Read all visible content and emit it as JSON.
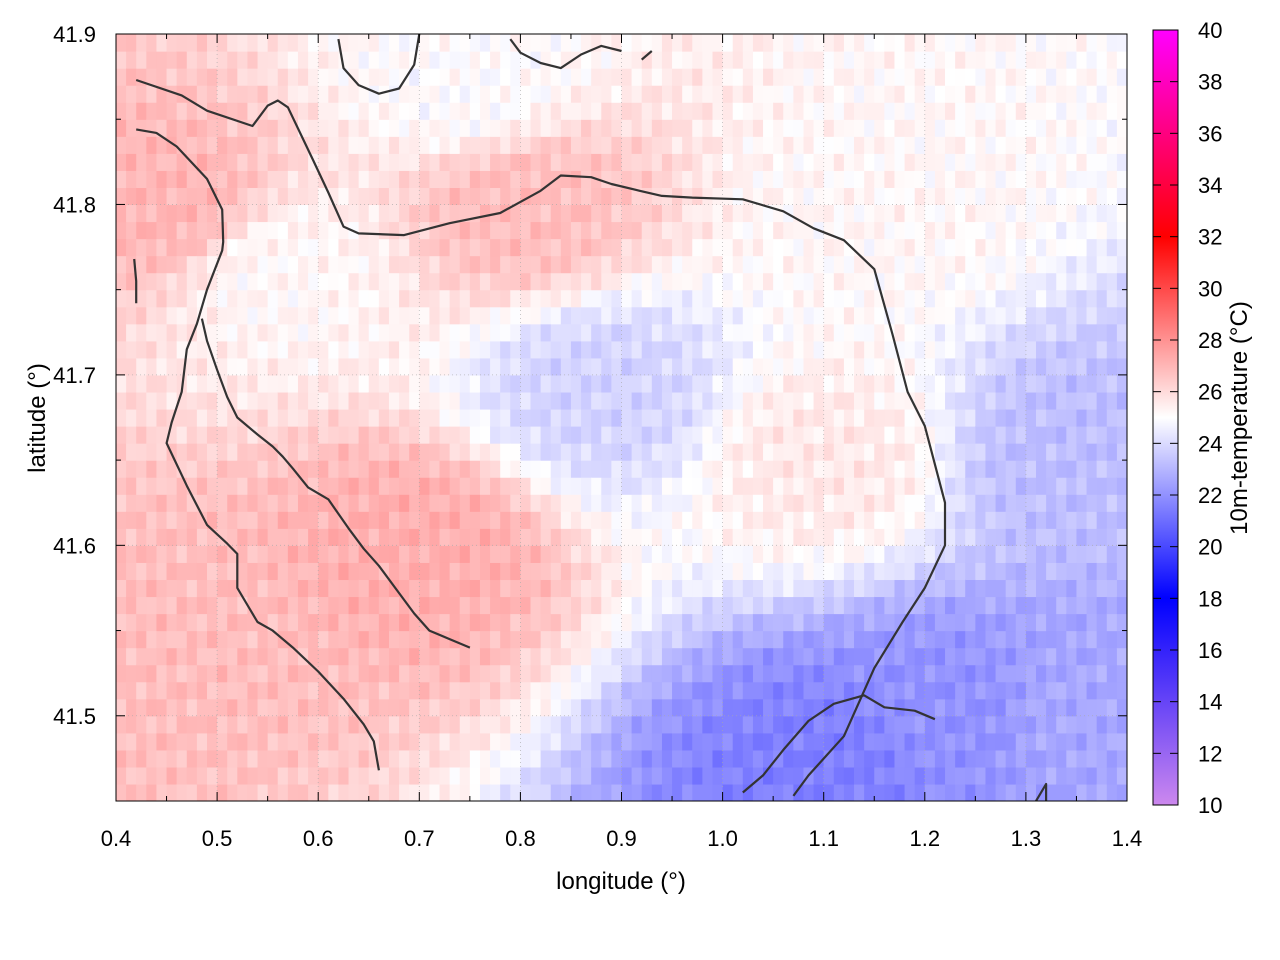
{
  "chart_data": {
    "type": "heatmap",
    "xlabel": "longitude (°)",
    "ylabel": "latitude (°)",
    "colorbar_label": "10m-temperature (°C)",
    "xlim": [
      0.4,
      1.4
    ],
    "ylim": [
      41.45,
      41.9
    ],
    "x_ticks": [
      "0.4",
      "0.5",
      "0.6",
      "0.7",
      "0.8",
      "0.9",
      "1.0",
      "1.1",
      "1.2",
      "1.3",
      "1.4"
    ],
    "y_ticks": [
      "41.5",
      "41.6",
      "41.7",
      "41.8",
      "41.9"
    ],
    "y_tick_values": [
      41.5,
      41.6,
      41.7,
      41.8,
      41.9
    ],
    "colorbar_range": [
      10,
      40
    ],
    "colorbar_ticks": [
      "10",
      "12",
      "14",
      "16",
      "18",
      "20",
      "22",
      "24",
      "26",
      "28",
      "30",
      "32",
      "34",
      "36",
      "38",
      "40"
    ],
    "colormap": [
      {
        "value": 10,
        "color": "#cc88ee"
      },
      {
        "value": 18,
        "color": "#0000ff"
      },
      {
        "value": 25,
        "color": "#ffffff"
      },
      {
        "value": 32,
        "color": "#ff0000"
      },
      {
        "value": 40,
        "color": "#ff00ff"
      }
    ],
    "grid": true,
    "field_samples": [
      {
        "lon": 0.45,
        "lat": 41.8,
        "t": 27.0
      },
      {
        "lon": 0.45,
        "lat": 41.55,
        "t": 26.8
      },
      {
        "lon": 0.7,
        "lat": 41.6,
        "t": 27.2
      },
      {
        "lon": 0.8,
        "lat": 41.8,
        "t": 26.8
      },
      {
        "lon": 0.88,
        "lat": 41.69,
        "t": 23.8
      },
      {
        "lon": 0.56,
        "lat": 41.76,
        "t": 25.2
      },
      {
        "lon": 0.75,
        "lat": 41.87,
        "t": 25.0
      },
      {
        "lon": 1.15,
        "lat": 41.8,
        "t": 25.2
      },
      {
        "lon": 1.1,
        "lat": 41.65,
        "t": 25.6
      },
      {
        "lon": 1.35,
        "lat": 41.65,
        "t": 23.2
      },
      {
        "lon": 1.1,
        "lat": 41.47,
        "t": 21.5
      },
      {
        "lon": 1.23,
        "lat": 41.5,
        "t": 22.0
      },
      {
        "lon": 1.35,
        "lat": 41.5,
        "t": 22.6
      }
    ],
    "contours": [
      [
        [
          0.42,
          41.873
        ],
        [
          0.465,
          41.864
        ],
        [
          0.49,
          41.855
        ],
        [
          0.535,
          41.846
        ],
        [
          0.55,
          41.858
        ],
        [
          0.56,
          41.861
        ],
        [
          0.57,
          41.857
        ],
        [
          0.595,
          41.826
        ],
        [
          0.61,
          41.807
        ],
        [
          0.625,
          41.787
        ],
        [
          0.64,
          41.783
        ],
        [
          0.685,
          41.782
        ],
        [
          0.73,
          41.789
        ],
        [
          0.78,
          41.795
        ],
        [
          0.82,
          41.808
        ],
        [
          0.84,
          41.817
        ],
        [
          0.87,
          41.816
        ],
        [
          0.89,
          41.812
        ],
        [
          0.918,
          41.808
        ],
        [
          0.94,
          41.805
        ],
        [
          0.97,
          41.804
        ],
        [
          1.02,
          41.803
        ],
        [
          1.06,
          41.796
        ],
        [
          1.09,
          41.786
        ],
        [
          1.12,
          41.779
        ],
        [
          1.15,
          41.762
        ],
        [
          1.168,
          41.724
        ],
        [
          1.183,
          41.69
        ],
        [
          1.2,
          41.67
        ],
        [
          1.22,
          41.625
        ],
        [
          1.22,
          41.6
        ],
        [
          1.2,
          41.575
        ],
        [
          1.178,
          41.555
        ],
        [
          1.15,
          41.528
        ],
        [
          1.12,
          41.488
        ],
        [
          1.085,
          41.465
        ],
        [
          1.07,
          41.453
        ]
      ],
      [
        [
          0.62,
          41.897
        ],
        [
          0.625,
          41.88
        ],
        [
          0.64,
          41.87
        ],
        [
          0.66,
          41.865
        ],
        [
          0.68,
          41.868
        ],
        [
          0.695,
          41.882
        ],
        [
          0.7,
          41.9
        ]
      ],
      [
        [
          0.79,
          41.897
        ],
        [
          0.8,
          41.889
        ],
        [
          0.82,
          41.883
        ],
        [
          0.84,
          41.88
        ],
        [
          0.86,
          41.888
        ],
        [
          0.88,
          41.893
        ],
        [
          0.9,
          41.89
        ]
      ],
      [
        [
          0.92,
          41.885
        ],
        [
          0.93,
          41.89
        ]
      ],
      [
        [
          0.42,
          41.844
        ],
        [
          0.44,
          41.842
        ],
        [
          0.46,
          41.834
        ],
        [
          0.49,
          41.815
        ],
        [
          0.505,
          41.797
        ],
        [
          0.506,
          41.778
        ],
        [
          0.505,
          41.773
        ],
        [
          0.49,
          41.75
        ],
        [
          0.48,
          41.73
        ],
        [
          0.47,
          41.715
        ],
        [
          0.465,
          41.69
        ],
        [
          0.455,
          41.672
        ],
        [
          0.45,
          41.66
        ],
        [
          0.47,
          41.635
        ],
        [
          0.49,
          41.612
        ],
        [
          0.51,
          41.601
        ],
        [
          0.52,
          41.595
        ],
        [
          0.52,
          41.575
        ],
        [
          0.53,
          41.565
        ],
        [
          0.54,
          41.555
        ],
        [
          0.555,
          41.55
        ],
        [
          0.575,
          41.54
        ],
        [
          0.6,
          41.526
        ],
        [
          0.625,
          41.51
        ],
        [
          0.645,
          41.495
        ],
        [
          0.655,
          41.485
        ],
        [
          0.66,
          41.468
        ]
      ],
      [
        [
          0.418,
          41.768
        ],
        [
          0.42,
          41.755
        ],
        [
          0.42,
          41.742
        ]
      ],
      [
        [
          0.485,
          41.733
        ],
        [
          0.49,
          41.72
        ],
        [
          0.5,
          41.703
        ],
        [
          0.51,
          41.687
        ],
        [
          0.52,
          41.675
        ],
        [
          0.54,
          41.665
        ],
        [
          0.555,
          41.658
        ],
        [
          0.565,
          41.652
        ],
        [
          0.575,
          41.645
        ],
        [
          0.59,
          41.634
        ],
        [
          0.61,
          41.627
        ],
        [
          0.63,
          41.61
        ],
        [
          0.645,
          41.598
        ],
        [
          0.66,
          41.588
        ],
        [
          0.68,
          41.572
        ],
        [
          0.695,
          41.56
        ],
        [
          0.71,
          41.55
        ],
        [
          0.73,
          41.545
        ],
        [
          0.75,
          41.54
        ]
      ],
      [
        [
          1.02,
          41.455
        ],
        [
          1.04,
          41.465
        ],
        [
          1.06,
          41.48
        ],
        [
          1.085,
          41.497
        ],
        [
          1.11,
          41.507
        ],
        [
          1.14,
          41.512
        ],
        [
          1.16,
          41.505
        ],
        [
          1.19,
          41.503
        ],
        [
          1.21,
          41.498
        ]
      ],
      [
        [
          1.31,
          41.45
        ],
        [
          1.32,
          41.46
        ],
        [
          1.32,
          41.445
        ]
      ]
    ]
  }
}
